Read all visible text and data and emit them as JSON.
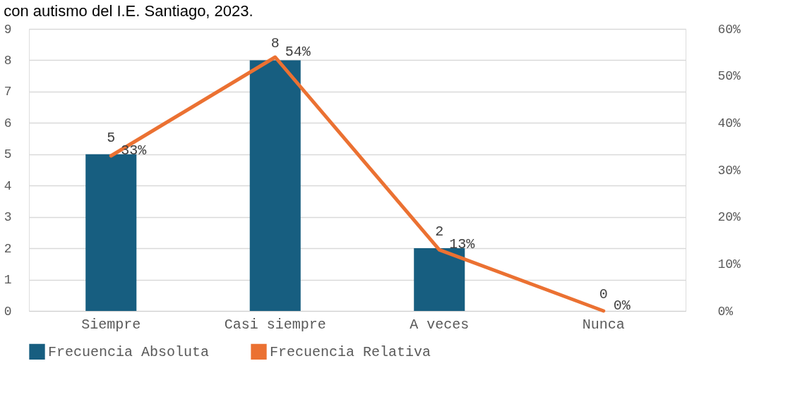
{
  "chart_data": {
    "type": "bar",
    "title": "con autismo del I.E. Santiago, 2023.",
    "categories": [
      "Siempre",
      "Casi siempre",
      "A veces",
      "Nunca"
    ],
    "series": [
      {
        "name": "Frecuencia Absoluta",
        "color": "#175e80",
        "values": [
          5,
          8,
          2,
          0
        ],
        "value_labels": [
          "5",
          "8",
          "2",
          "0"
        ]
      },
      {
        "name": "Frecuencia Relativa",
        "type": "line",
        "axis": "y2",
        "color": "#eb7132",
        "values": [
          33,
          54,
          13,
          0
        ],
        "value_labels": [
          "33%",
          "54%",
          "13%",
          "0%"
        ]
      }
    ],
    "ylim": [
      0,
      9
    ],
    "yticks": [
      0,
      1,
      2,
      3,
      4,
      5,
      6,
      7,
      8,
      9
    ],
    "y2lim": [
      0,
      60
    ],
    "y2ticks": [
      {
        "value": 0,
        "label": "0%"
      },
      {
        "value": 10,
        "label": "10%"
      },
      {
        "value": 20,
        "label": "20%"
      },
      {
        "value": 30,
        "label": "30%"
      },
      {
        "value": 40,
        "label": "40%"
      },
      {
        "value": 50,
        "label": "50%"
      },
      {
        "value": 60,
        "label": "60%"
      }
    ],
    "grid": "y",
    "legend": "bottom",
    "marker": "none",
    "line_style": "solid"
  }
}
